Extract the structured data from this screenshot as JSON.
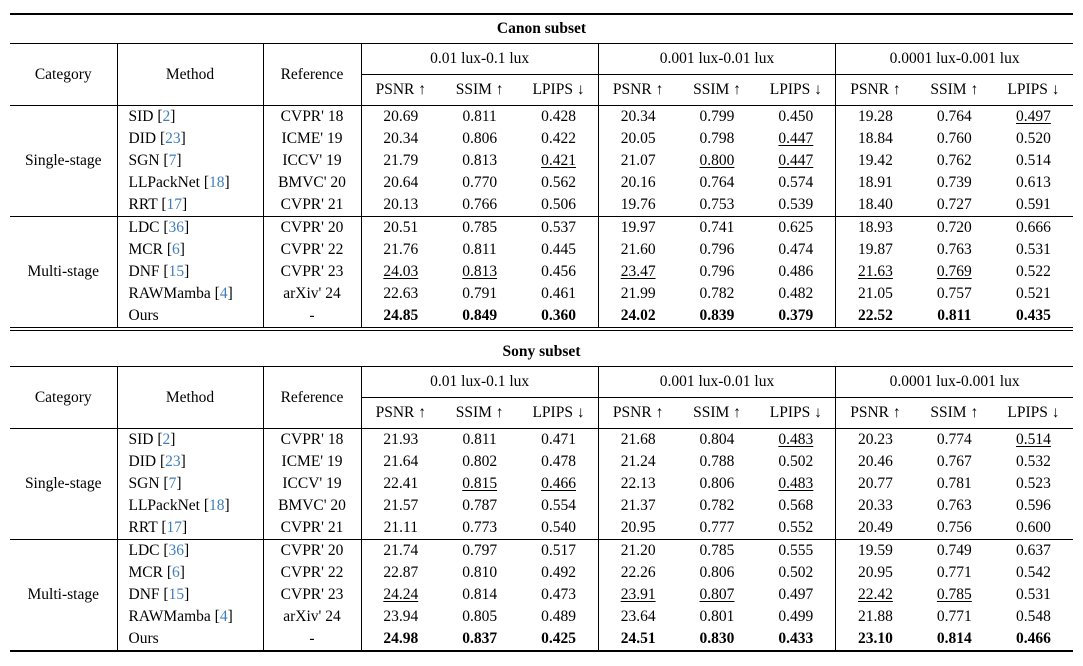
{
  "page": {
    "background": "#ffffff",
    "text_color": "#000000"
  },
  "citation": {
    "open": "[",
    "close": "]",
    "color": "#3E7EBE"
  },
  "tables": [
    {
      "id": "canon",
      "title": "Canon subset",
      "col_headers": {
        "category": "Category",
        "method": "Method",
        "reference": "Reference"
      },
      "lux_groups": [
        "0.01 lux-0.1 lux",
        "0.001 lux-0.01 lux",
        "0.0001 lux-0.001 lux"
      ],
      "metric_headers": [
        "PSNR ↑",
        "SSIM ↑",
        "LPIPS ↓"
      ],
      "sections": [
        {
          "category": "Single-stage",
          "rows": [
            {
              "method": "SID",
              "cite": "2",
              "reference": "CVPR' 18",
              "values": [
                "20.69",
                "0.811",
                "0.428",
                "20.34",
                "0.799",
                "0.450",
                "19.28",
                "0.764",
                "0.497"
              ],
              "marks": [
                "",
                "",
                "",
                "",
                "",
                "",
                "",
                "",
                "u"
              ]
            },
            {
              "method": "DID",
              "cite": "23",
              "reference": "ICME' 19",
              "values": [
                "20.34",
                "0.806",
                "0.422",
                "20.05",
                "0.798",
                "0.447",
                "18.84",
                "0.760",
                "0.520"
              ],
              "marks": [
                "",
                "",
                "",
                "",
                "",
                "u",
                "",
                "",
                ""
              ]
            },
            {
              "method": "SGN",
              "cite": "7",
              "reference": "ICCV' 19",
              "values": [
                "21.79",
                "0.813",
                "0.421",
                "21.07",
                "0.800",
                "0.447",
                "19.42",
                "0.762",
                "0.514"
              ],
              "marks": [
                "",
                "",
                "u",
                "",
                "u",
                "u",
                "",
                "",
                ""
              ]
            },
            {
              "method": "LLPackNet",
              "cite": "18",
              "reference": "BMVC' 20",
              "values": [
                "20.64",
                "0.770",
                "0.562",
                "20.16",
                "0.764",
                "0.574",
                "18.91",
                "0.739",
                "0.613"
              ],
              "marks": [
                "",
                "",
                "",
                "",
                "",
                "",
                "",
                "",
                ""
              ]
            },
            {
              "method": "RRT",
              "cite": "17",
              "reference": "CVPR' 21",
              "values": [
                "20.13",
                "0.766",
                "0.506",
                "19.76",
                "0.753",
                "0.539",
                "18.40",
                "0.727",
                "0.591"
              ],
              "marks": [
                "",
                "",
                "",
                "",
                "",
                "",
                "",
                "",
                ""
              ]
            }
          ]
        },
        {
          "category": "Multi-stage",
          "rows": [
            {
              "method": "LDC",
              "cite": "36",
              "reference": "CVPR' 20",
              "values": [
                "20.51",
                "0.785",
                "0.537",
                "19.97",
                "0.741",
                "0.625",
                "18.93",
                "0.720",
                "0.666"
              ],
              "marks": [
                "",
                "",
                "",
                "",
                "",
                "",
                "",
                "",
                ""
              ]
            },
            {
              "method": "MCR",
              "cite": "6",
              "reference": "CVPR' 22",
              "values": [
                "21.76",
                "0.811",
                "0.445",
                "21.60",
                "0.796",
                "0.474",
                "19.87",
                "0.763",
                "0.531"
              ],
              "marks": [
                "",
                "",
                "",
                "",
                "",
                "",
                "",
                "",
                ""
              ]
            },
            {
              "method": "DNF",
              "cite": "15",
              "reference": "CVPR' 23",
              "values": [
                "24.03",
                "0.813",
                "0.456",
                "23.47",
                "0.796",
                "0.486",
                "21.63",
                "0.769",
                "0.522"
              ],
              "marks": [
                "u",
                "u",
                "",
                "u",
                "",
                "",
                "u",
                "u",
                ""
              ]
            },
            {
              "method": "RAWMamba",
              "cite": "4",
              "reference": "arXiv' 24",
              "values": [
                "22.63",
                "0.791",
                "0.461",
                "21.99",
                "0.782",
                "0.482",
                "21.05",
                "0.757",
                "0.521"
              ],
              "marks": [
                "",
                "",
                "",
                "",
                "",
                "",
                "",
                "",
                ""
              ]
            },
            {
              "method": "Ours",
              "cite": null,
              "reference": "-",
              "values": [
                "24.85",
                "0.849",
                "0.360",
                "24.02",
                "0.839",
                "0.379",
                "22.52",
                "0.811",
                "0.435"
              ],
              "marks": [
                "b",
                "b",
                "b",
                "b",
                "b",
                "b",
                "b",
                "b",
                "b"
              ]
            }
          ]
        }
      ]
    },
    {
      "id": "sony",
      "title": "Sony subset",
      "col_headers": {
        "category": "Category",
        "method": "Method",
        "reference": "Reference"
      },
      "lux_groups": [
        "0.01 lux-0.1 lux",
        "0.001 lux-0.01 lux",
        "0.0001 lux-0.001 lux"
      ],
      "metric_headers": [
        "PSNR ↑",
        "SSIM ↑",
        "LPIPS ↓"
      ],
      "sections": [
        {
          "category": "Single-stage",
          "rows": [
            {
              "method": "SID",
              "cite": "2",
              "reference": "CVPR' 18",
              "values": [
                "21.93",
                "0.811",
                "0.471",
                "21.68",
                "0.804",
                "0.483",
                "20.23",
                "0.774",
                "0.514"
              ],
              "marks": [
                "",
                "",
                "",
                "",
                "",
                "u",
                "",
                "",
                "u"
              ]
            },
            {
              "method": "DID",
              "cite": "23",
              "reference": "ICME' 19",
              "values": [
                "21.64",
                "0.802",
                "0.478",
                "21.24",
                "0.788",
                "0.502",
                "20.46",
                "0.767",
                "0.532"
              ],
              "marks": [
                "",
                "",
                "",
                "",
                "",
                "",
                "",
                "",
                ""
              ]
            },
            {
              "method": "SGN",
              "cite": "7",
              "reference": "ICCV' 19",
              "values": [
                "22.41",
                "0.815",
                "0.466",
                "22.13",
                "0.806",
                "0.483",
                "20.77",
                "0.781",
                "0.523"
              ],
              "marks": [
                "",
                "u",
                "u",
                "",
                "",
                "u",
                "",
                "",
                ""
              ]
            },
            {
              "method": "LLPackNet",
              "cite": "18",
              "reference": "BMVC' 20",
              "values": [
                "21.57",
                "0.787",
                "0.554",
                "21.37",
                "0.782",
                "0.568",
                "20.33",
                "0.763",
                "0.596"
              ],
              "marks": [
                "",
                "",
                "",
                "",
                "",
                "",
                "",
                "",
                ""
              ]
            },
            {
              "method": "RRT",
              "cite": "17",
              "reference": "CVPR' 21",
              "values": [
                "21.11",
                "0.773",
                "0.540",
                "20.95",
                "0.777",
                "0.552",
                "20.49",
                "0.756",
                "0.600"
              ],
              "marks": [
                "",
                "",
                "",
                "",
                "",
                "",
                "",
                "",
                ""
              ]
            }
          ]
        },
        {
          "category": "Multi-stage",
          "rows": [
            {
              "method": "LDC",
              "cite": "36",
              "reference": "CVPR' 20",
              "values": [
                "21.74",
                "0.797",
                "0.517",
                "21.20",
                "0.785",
                "0.555",
                "19.59",
                "0.749",
                "0.637"
              ],
              "marks": [
                "",
                "",
                "",
                "",
                "",
                "",
                "",
                "",
                ""
              ]
            },
            {
              "method": "MCR",
              "cite": "6",
              "reference": "CVPR' 22",
              "values": [
                "22.87",
                "0.810",
                "0.492",
                "22.26",
                "0.806",
                "0.502",
                "20.95",
                "0.771",
                "0.542"
              ],
              "marks": [
                "",
                "",
                "",
                "",
                "",
                "",
                "",
                "",
                ""
              ]
            },
            {
              "method": "DNF",
              "cite": "15",
              "reference": "CVPR' 23",
              "values": [
                "24.24",
                "0.814",
                "0.473",
                "23.91",
                "0.807",
                "0.497",
                "22.42",
                "0.785",
                "0.531"
              ],
              "marks": [
                "u",
                "",
                "",
                "u",
                "u",
                "",
                "u",
                "u",
                ""
              ]
            },
            {
              "method": "RAWMamba",
              "cite": "4",
              "reference": "arXiv' 24",
              "values": [
                "23.94",
                "0.805",
                "0.489",
                "23.64",
                "0.801",
                "0.499",
                "21.88",
                "0.771",
                "0.548"
              ],
              "marks": [
                "",
                "",
                "",
                "",
                "",
                "",
                "",
                "",
                ""
              ]
            },
            {
              "method": "Ours",
              "cite": null,
              "reference": "-",
              "values": [
                "24.98",
                "0.837",
                "0.425",
                "24.51",
                "0.830",
                "0.433",
                "23.10",
                "0.814",
                "0.466"
              ],
              "marks": [
                "b",
                "b",
                "b",
                "b",
                "b",
                "b",
                "b",
                "b",
                "b"
              ]
            }
          ]
        }
      ]
    }
  ]
}
